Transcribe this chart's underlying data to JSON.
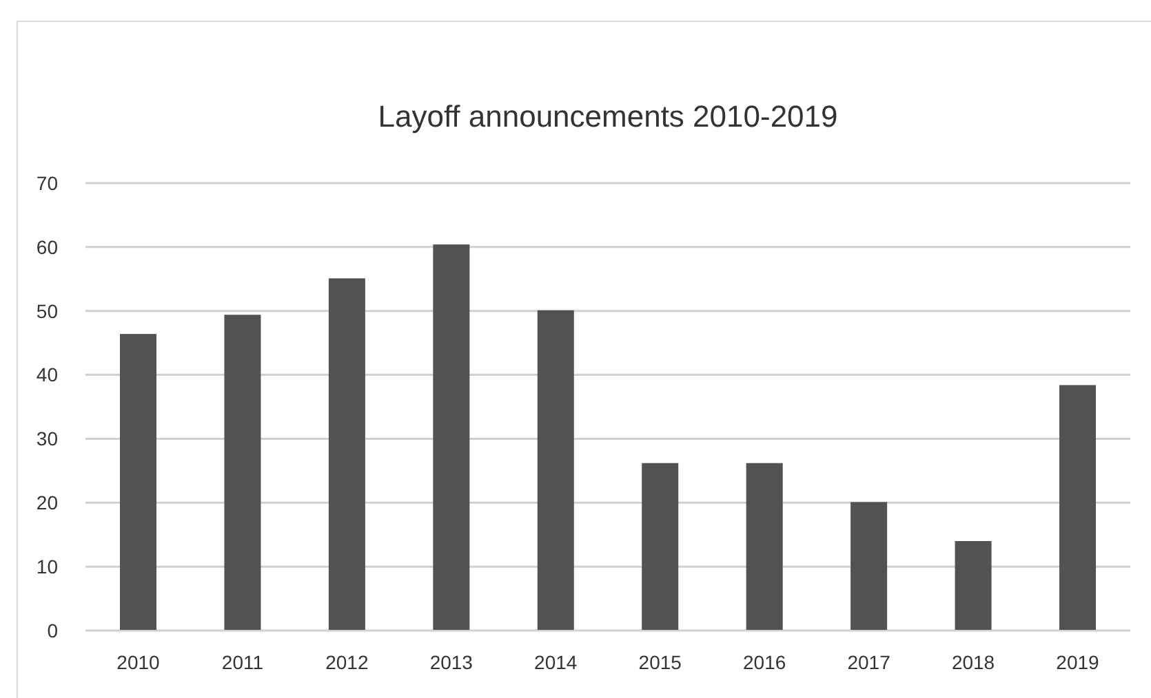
{
  "chart_data": {
    "type": "bar",
    "title": "Layoff announcements 2010-2019",
    "categories": [
      "2010",
      "2011",
      "2012",
      "2013",
      "2014",
      "2015",
      "2016",
      "2017",
      "2018",
      "2019"
    ],
    "values": [
      46.4,
      49.4,
      55.1,
      60.4,
      50.1,
      26.2,
      26.2,
      20.1,
      14,
      38.4
    ],
    "color": "#525252",
    "ylim": [
      0,
      70
    ],
    "yticks": [
      0,
      10,
      20,
      30,
      40,
      50,
      60,
      70
    ],
    "grid": "y"
  }
}
